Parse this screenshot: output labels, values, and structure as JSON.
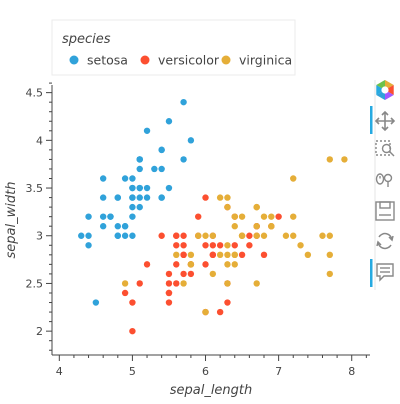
{
  "chart_data": {
    "type": "scatter",
    "title": "",
    "xlabel": "sepal_length",
    "ylabel": "sepal_width",
    "xlim": [
      3.9,
      8.25
    ],
    "ylim": [
      1.75,
      4.58
    ],
    "x_ticks": [
      4,
      5,
      6,
      7,
      8
    ],
    "x_tick_labels": [
      "4",
      "5",
      "6",
      "7",
      "8"
    ],
    "y_ticks": [
      2,
      2.5,
      3,
      3.5,
      4,
      4.5
    ],
    "y_tick_labels": [
      "2",
      "2.5",
      "3",
      "3.5",
      "4",
      "4.5"
    ],
    "grid": false,
    "legend": {
      "title": "species",
      "placement": "top",
      "orientation": "horizontal"
    },
    "series": [
      {
        "name": "setosa",
        "color": "#30a2da",
        "points": [
          [
            5.1,
            3.5
          ],
          [
            4.9,
            3.0
          ],
          [
            4.7,
            3.2
          ],
          [
            4.6,
            3.1
          ],
          [
            5.0,
            3.6
          ],
          [
            5.4,
            3.9
          ],
          [
            4.6,
            3.4
          ],
          [
            5.0,
            3.4
          ],
          [
            4.4,
            2.9
          ],
          [
            4.9,
            3.1
          ],
          [
            5.4,
            3.7
          ],
          [
            4.8,
            3.4
          ],
          [
            4.8,
            3.0
          ],
          [
            4.3,
            3.0
          ],
          [
            5.8,
            4.0
          ],
          [
            5.7,
            4.4
          ],
          [
            5.4,
            3.9
          ],
          [
            5.1,
            3.5
          ],
          [
            5.7,
            3.8
          ],
          [
            5.1,
            3.8
          ],
          [
            5.4,
            3.4
          ],
          [
            5.1,
            3.7
          ],
          [
            4.6,
            3.6
          ],
          [
            5.1,
            3.3
          ],
          [
            4.8,
            3.4
          ],
          [
            5.0,
            3.0
          ],
          [
            5.0,
            3.4
          ],
          [
            5.2,
            3.5
          ],
          [
            5.2,
            3.4
          ],
          [
            4.7,
            3.2
          ],
          [
            4.8,
            3.1
          ],
          [
            5.4,
            3.4
          ],
          [
            5.2,
            4.1
          ],
          [
            5.5,
            4.2
          ],
          [
            4.9,
            3.1
          ],
          [
            5.0,
            3.2
          ],
          [
            5.5,
            3.5
          ],
          [
            4.9,
            3.6
          ],
          [
            4.4,
            3.0
          ],
          [
            5.1,
            3.4
          ],
          [
            5.0,
            3.5
          ],
          [
            4.5,
            2.3
          ],
          [
            4.4,
            3.2
          ],
          [
            5.0,
            3.5
          ],
          [
            5.1,
            3.8
          ],
          [
            4.8,
            3.0
          ],
          [
            5.1,
            3.8
          ],
          [
            4.6,
            3.2
          ],
          [
            5.3,
            3.7
          ],
          [
            5.0,
            3.3
          ]
        ]
      },
      {
        "name": "versicolor",
        "color": "#fc4f30",
        "points": [
          [
            7.0,
            3.2
          ],
          [
            6.4,
            3.2
          ],
          [
            6.9,
            3.1
          ],
          [
            5.5,
            2.3
          ],
          [
            6.5,
            2.8
          ],
          [
            5.7,
            2.8
          ],
          [
            6.3,
            3.3
          ],
          [
            4.9,
            2.4
          ],
          [
            6.6,
            2.9
          ],
          [
            5.2,
            2.7
          ],
          [
            5.0,
            2.0
          ],
          [
            5.9,
            3.0
          ],
          [
            6.0,
            2.2
          ],
          [
            6.1,
            2.9
          ],
          [
            5.6,
            2.9
          ],
          [
            6.7,
            3.1
          ],
          [
            5.6,
            3.0
          ],
          [
            5.8,
            2.7
          ],
          [
            6.2,
            2.2
          ],
          [
            5.6,
            2.5
          ],
          [
            5.9,
            3.2
          ],
          [
            6.1,
            2.8
          ],
          [
            6.3,
            2.5
          ],
          [
            6.1,
            2.8
          ],
          [
            6.4,
            2.9
          ],
          [
            6.6,
            3.0
          ],
          [
            6.8,
            2.8
          ],
          [
            6.7,
            3.0
          ],
          [
            6.0,
            2.9
          ],
          [
            5.7,
            2.6
          ],
          [
            5.5,
            2.4
          ],
          [
            5.5,
            2.4
          ],
          [
            5.8,
            2.7
          ],
          [
            6.0,
            2.7
          ],
          [
            5.4,
            3.0
          ],
          [
            6.0,
            3.4
          ],
          [
            6.7,
            3.1
          ],
          [
            6.3,
            2.3
          ],
          [
            5.6,
            3.0
          ],
          [
            5.5,
            2.5
          ],
          [
            5.5,
            2.6
          ],
          [
            6.1,
            3.0
          ],
          [
            5.8,
            2.6
          ],
          [
            5.0,
            2.3
          ],
          [
            5.6,
            2.7
          ],
          [
            5.7,
            3.0
          ],
          [
            5.7,
            2.9
          ],
          [
            6.2,
            2.9
          ],
          [
            5.1,
            2.5
          ],
          [
            5.7,
            2.8
          ]
        ]
      },
      {
        "name": "virginica",
        "color": "#e5ae38",
        "points": [
          [
            6.3,
            3.3
          ],
          [
            5.8,
            2.7
          ],
          [
            7.1,
            3.0
          ],
          [
            6.3,
            2.9
          ],
          [
            6.5,
            3.0
          ],
          [
            7.6,
            3.0
          ],
          [
            4.9,
            2.5
          ],
          [
            7.3,
            2.9
          ],
          [
            6.7,
            2.5
          ],
          [
            7.2,
            3.6
          ],
          [
            6.5,
            3.2
          ],
          [
            6.4,
            2.7
          ],
          [
            6.8,
            3.0
          ],
          [
            5.7,
            2.5
          ],
          [
            5.8,
            2.8
          ],
          [
            6.4,
            3.2
          ],
          [
            6.5,
            3.0
          ],
          [
            7.7,
            3.8
          ],
          [
            7.7,
            2.6
          ],
          [
            6.0,
            2.2
          ],
          [
            6.9,
            3.2
          ],
          [
            5.6,
            2.8
          ],
          [
            7.7,
            2.8
          ],
          [
            6.3,
            2.7
          ],
          [
            6.7,
            3.3
          ],
          [
            7.2,
            3.2
          ],
          [
            6.2,
            2.8
          ],
          [
            6.1,
            3.0
          ],
          [
            6.4,
            2.8
          ],
          [
            7.2,
            3.0
          ],
          [
            7.4,
            2.8
          ],
          [
            7.9,
            3.8
          ],
          [
            6.4,
            2.8
          ],
          [
            6.3,
            2.8
          ],
          [
            6.1,
            2.6
          ],
          [
            7.7,
            3.0
          ],
          [
            6.3,
            3.4
          ],
          [
            6.4,
            3.1
          ],
          [
            6.0,
            3.0
          ],
          [
            6.9,
            3.1
          ],
          [
            6.7,
            3.1
          ],
          [
            6.9,
            3.1
          ],
          [
            5.8,
            2.7
          ],
          [
            6.8,
            3.2
          ],
          [
            6.7,
            3.3
          ],
          [
            6.7,
            3.0
          ],
          [
            6.3,
            2.5
          ],
          [
            6.5,
            3.0
          ],
          [
            6.2,
            3.4
          ],
          [
            5.9,
            3.0
          ]
        ]
      }
    ]
  },
  "toolbar": {
    "tools": [
      {
        "icon": "bokeh-logo-icon",
        "active": false
      },
      {
        "icon": "pan-icon",
        "active": true
      },
      {
        "icon": "box-zoom-icon",
        "active": false
      },
      {
        "icon": "wheel-zoom-icon",
        "active": false
      },
      {
        "icon": "save-icon",
        "active": false
      },
      {
        "icon": "reset-icon",
        "active": false
      },
      {
        "icon": "hover-icon",
        "active": true
      }
    ],
    "active_color": "#26aae1"
  }
}
